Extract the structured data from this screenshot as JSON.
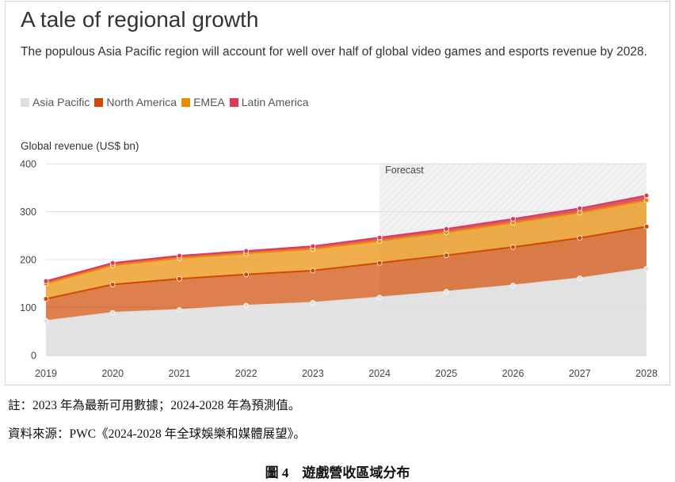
{
  "chart_data": {
    "type": "area",
    "title": "A tale of regional growth",
    "subtitle": "The populous Asia Pacific region will account for well over half of global video games and esports revenue by 2028.",
    "ylabel": "Global revenue (US$ bn)",
    "xlabel": "",
    "stacked": true,
    "ylim": [
      0,
      400
    ],
    "yticks": [
      0,
      100,
      200,
      300,
      400
    ],
    "categories": [
      "2019",
      "2020",
      "2021",
      "2022",
      "2023",
      "2024",
      "2025",
      "2026",
      "2027",
      "2028"
    ],
    "forecast_label": "Forecast",
    "forecast_start": "2024",
    "grid": true,
    "legend_position": "top-left",
    "series": [
      {
        "name": "Asia Pacific",
        "color": "#e0e0e0",
        "values": [
          72,
          89,
          95,
          104,
          110,
          121,
          133,
          146,
          161,
          181
        ]
      },
      {
        "name": "North America",
        "color": "#d04a02",
        "values": [
          46,
          59,
          65,
          65,
          67,
          72,
          76,
          80,
          84,
          88
        ]
      },
      {
        "name": "EMEA",
        "color": "#eb8c00",
        "values": [
          32,
          40,
          43,
          44,
          45,
          46,
          48,
          51,
          53,
          55
        ]
      },
      {
        "name": "Latin America",
        "color": "#db3a59",
        "values": [
          5,
          5,
          5,
          5,
          6,
          7,
          7,
          8,
          9,
          10
        ]
      }
    ]
  },
  "notes": {
    "line1": "註：2023 年為最新可用數據；2024-2028 年為預測值。",
    "line2": "資料來源：PWC《2024-2028 年全球娛樂和媒體展望》。"
  },
  "caption": "圖 4　遊戲營收區域分布"
}
